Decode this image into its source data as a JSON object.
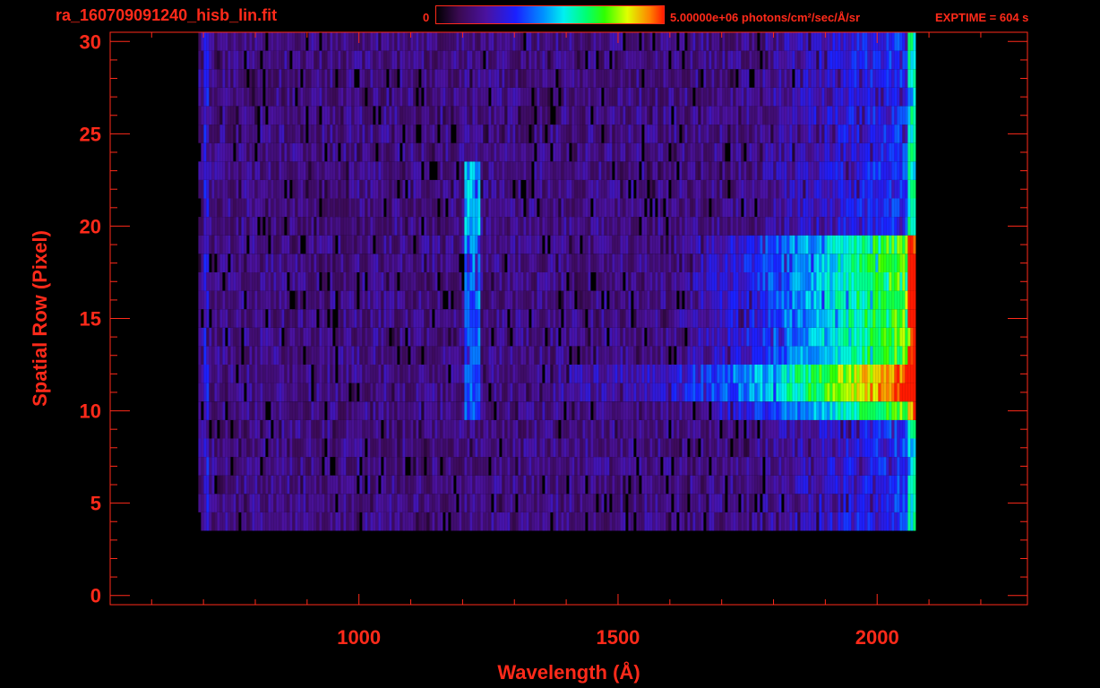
{
  "header": {
    "filename": "ra_160709091240_hisb_lin.fit",
    "colorbar_min_label": "0",
    "colorbar_max_label": "5.00000e+06 photons/cm²/sec/Å/sr",
    "exptime_label": "EXPTIME = 604 s"
  },
  "chart_data": {
    "type": "heatmap",
    "xlabel": "Wavelength (Å)",
    "ylabel": "Spatial Row (Pixel)",
    "xlim": [
      520,
      2290
    ],
    "ylim": [
      -0.5,
      30.5
    ],
    "xticks": [
      1000,
      1500,
      2000
    ],
    "xtick_labels": [
      "1000",
      "1500",
      "2000"
    ],
    "yticks": [
      0,
      5,
      10,
      15,
      20,
      25,
      30
    ],
    "ytick_labels": [
      "0",
      "5",
      "10",
      "15",
      "20",
      "25",
      "30"
    ],
    "colorbar": {
      "min": 0,
      "max": 5000000,
      "unit": "photons/cm²/sec/Å/sr"
    },
    "colors": {
      "axis": "#ff2a1a",
      "background": "#000000"
    },
    "data_extent": {
      "wavelength_min": 690,
      "wavelength_max": 2070,
      "rows_min": 4,
      "rows_max": 30
    },
    "features": [
      {
        "wavelength": 1216,
        "rows": [
          10,
          24
        ]
      },
      {
        "wavelength_range": [
          1700,
          2070
        ],
        "rows": [
          10,
          20
        ]
      },
      {
        "wavelength": 700,
        "rows": [
          4,
          30
        ]
      }
    ]
  }
}
